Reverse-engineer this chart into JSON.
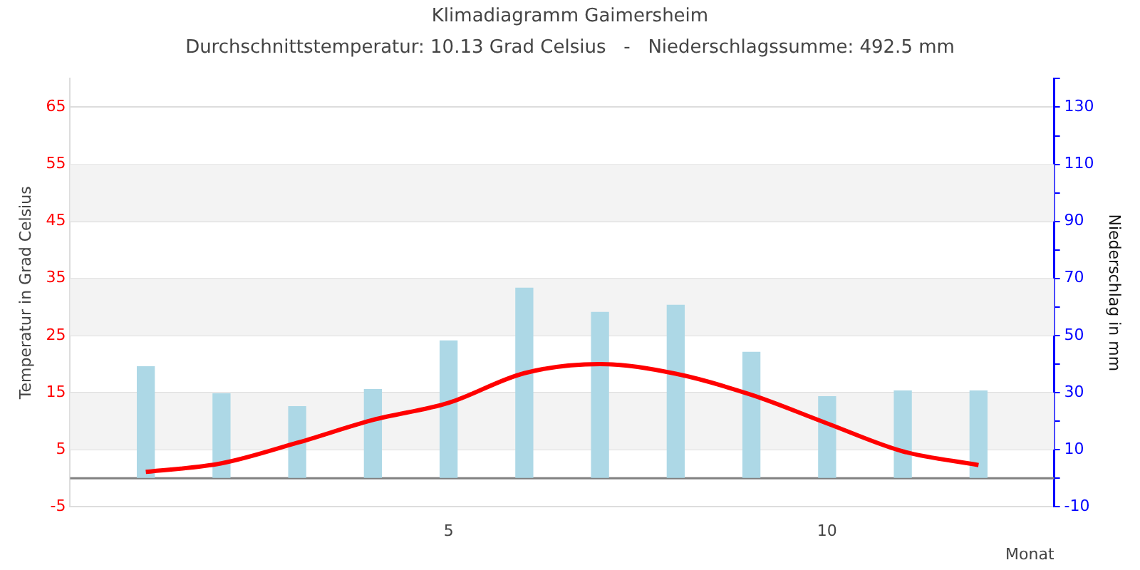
{
  "chart_data": {
    "type": "bar",
    "title": "Klimadiagramm Gaimersheim",
    "subtitle": "Durchschnittstemperatur: 10.13 Grad Celsius   -   Niederschlagssumme: 492.5 mm",
    "xlabel": "Monat",
    "ylabel": "Temperatur in Grad Celsius",
    "y2label": "Niederschlag in mm",
    "x": [
      1,
      2,
      3,
      4,
      5,
      6,
      7,
      8,
      9,
      10,
      11,
      12
    ],
    "series": [
      {
        "axis": "y2",
        "color": "#add8e6",
        "values": [
          39.1,
          29.6,
          25.1,
          31.1,
          48.1,
          66.6,
          58.1,
          60.6,
          44.1,
          28.6,
          30.6,
          30.6
        ]
      },
      {
        "type": "line",
        "axis": "y",
        "color": "#ff0000",
        "values": [
          1.1,
          2.6,
          6.2,
          10.2,
          13.2,
          18.4,
          20.0,
          18.3,
          14.6,
          9.6,
          4.7,
          2.3
        ]
      }
    ],
    "xlim": [
      0,
      13
    ],
    "xticks": [
      5,
      10
    ],
    "ylim": [
      -5,
      70
    ],
    "yticks": [
      -5,
      5,
      15,
      25,
      35,
      45,
      55,
      65
    ],
    "y2lim": [
      -10,
      140
    ],
    "y2ticks": [
      -10,
      {
        "value": 0,
        "label": null
      },
      10,
      {
        "value": 20,
        "label": null
      },
      30,
      {
        "value": 40,
        "label": null
      },
      50,
      {
        "value": 60,
        "label": null
      },
      70,
      {
        "value": 80,
        "label": null
      },
      90,
      {
        "value": 100,
        "label": null
      },
      110,
      {
        "value": 120,
        "label": null
      },
      130,
      {
        "value": 140,
        "label": null
      }
    ],
    "ref_lines": [
      {
        "axis": "y",
        "value": 0,
        "color": "#808080"
      }
    ],
    "grid": "y",
    "legend": false,
    "marker": "none",
    "line_style": "solid"
  }
}
